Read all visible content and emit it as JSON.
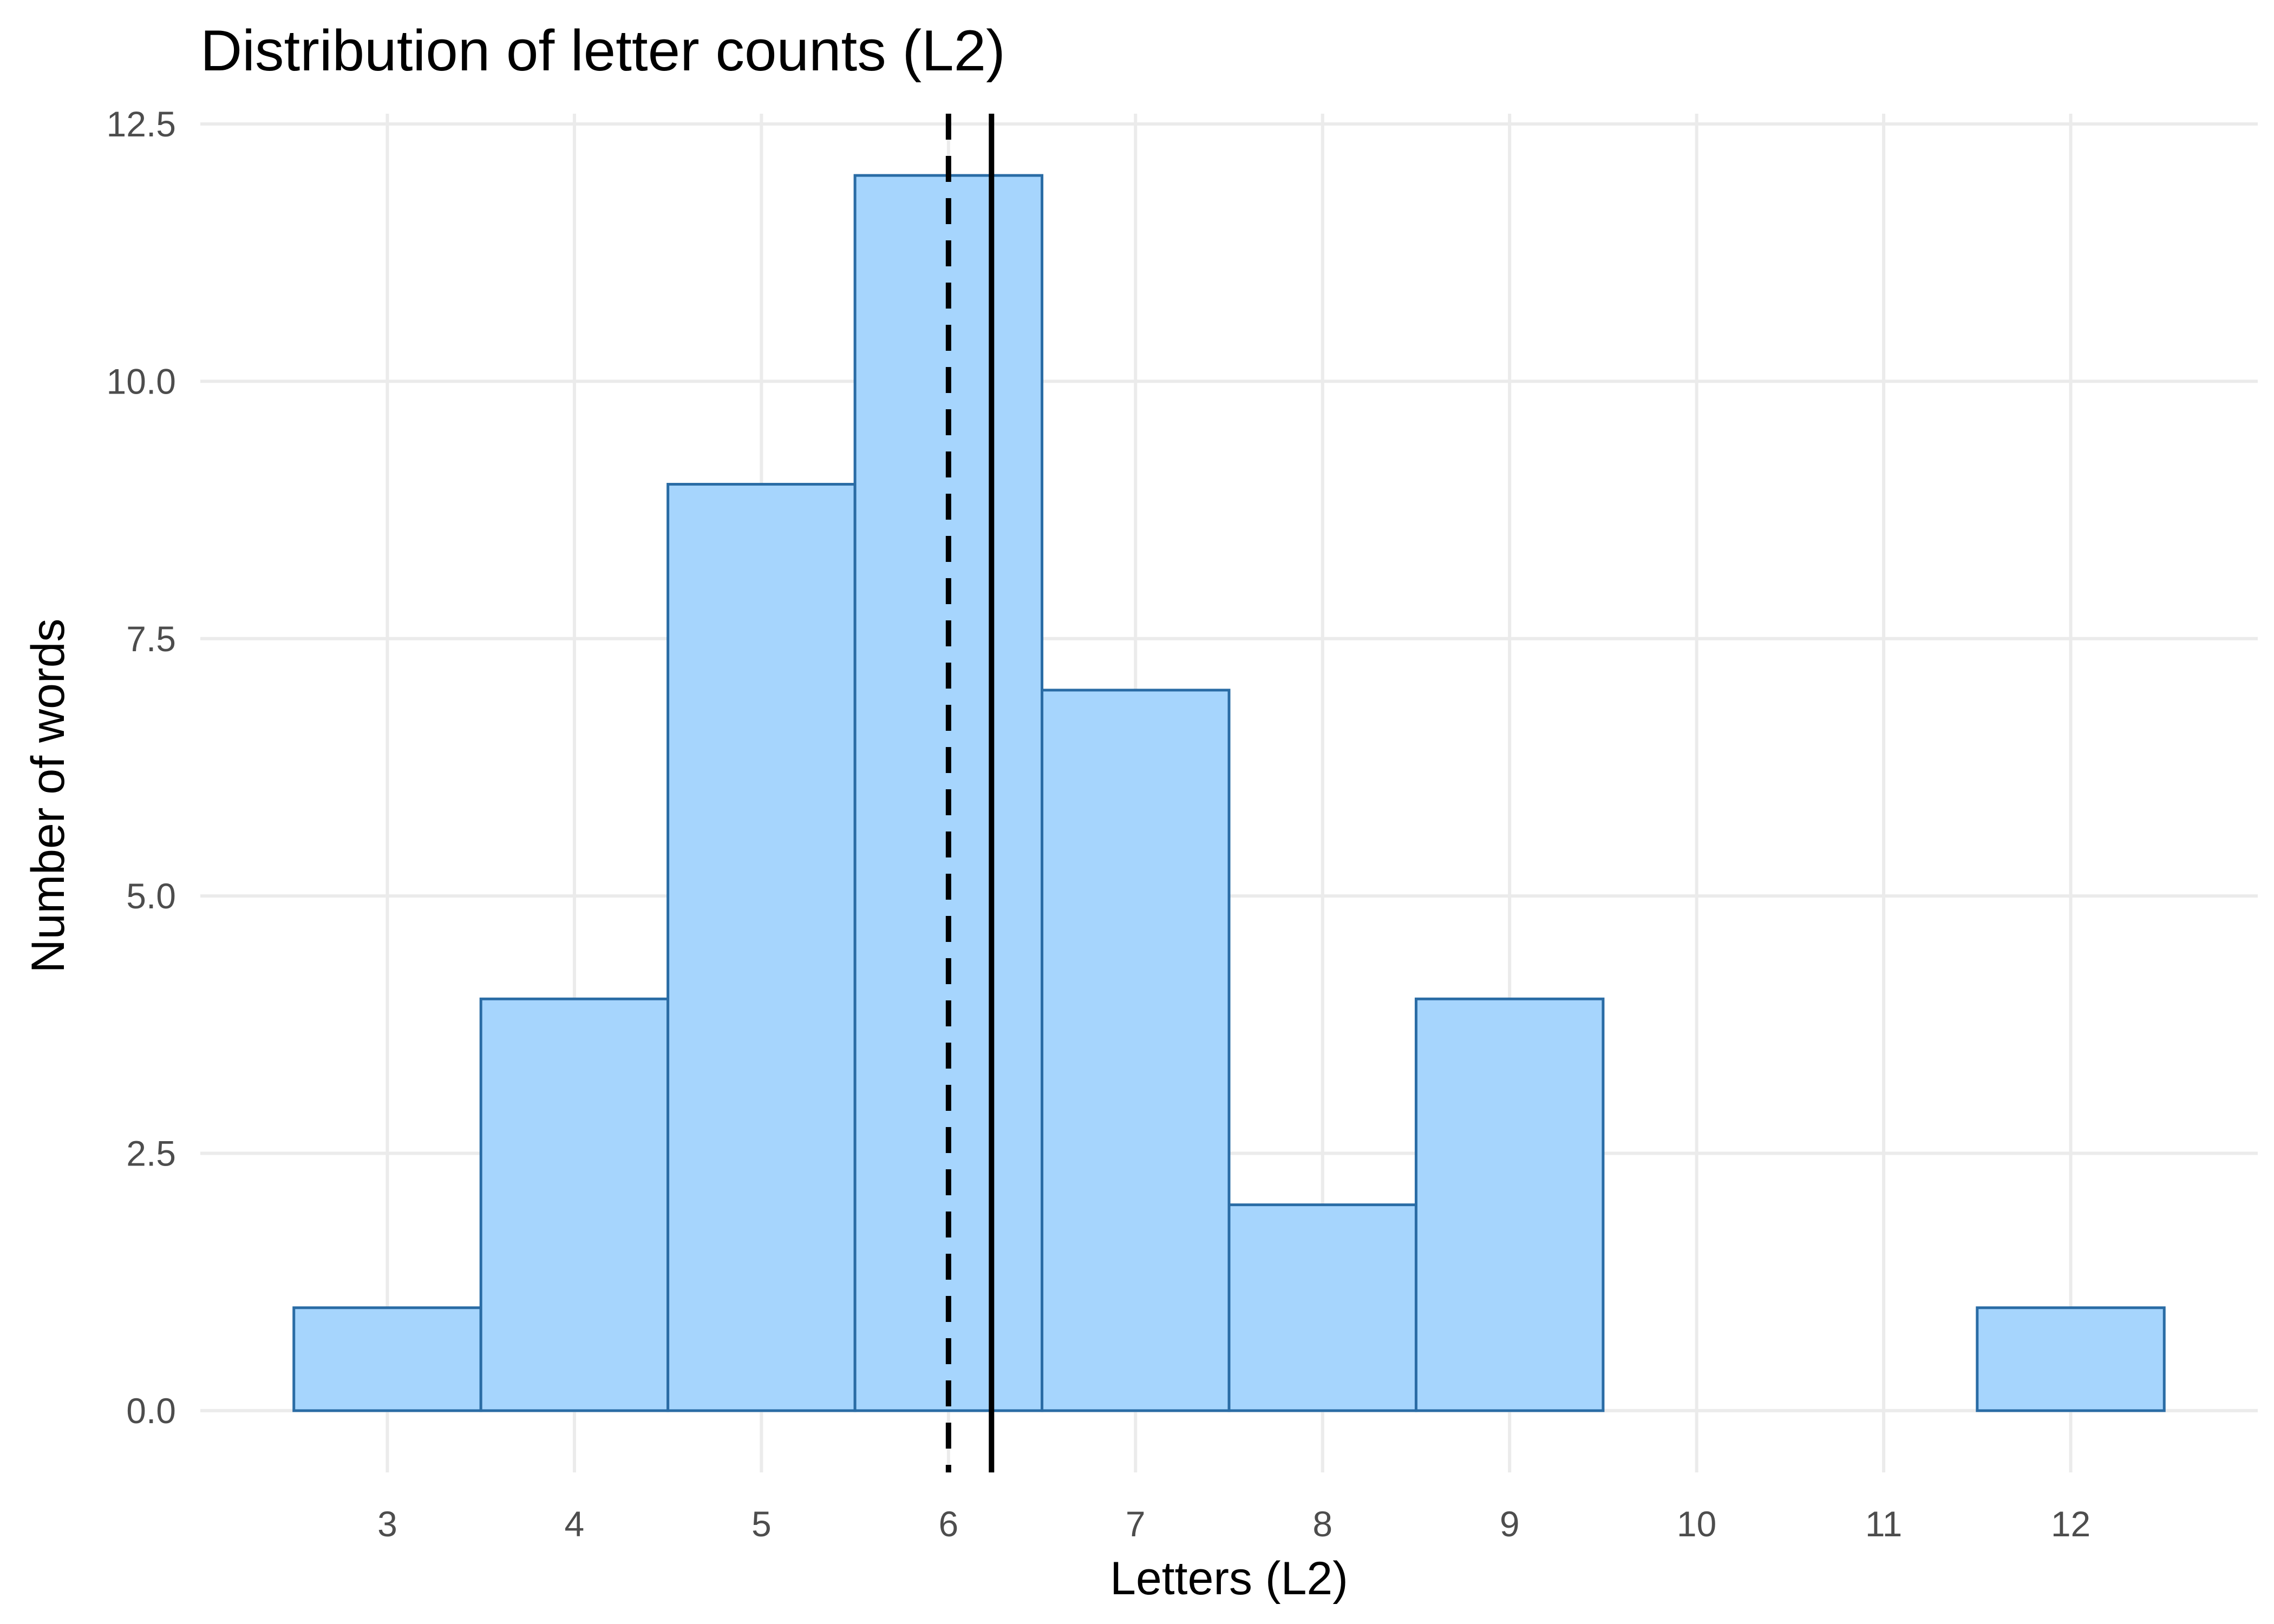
{
  "chart_data": {
    "type": "bar",
    "title": "Distribution of letter counts (L2)",
    "xlabel": "Letters (L2)",
    "ylabel": "Number of words",
    "x_ticks": [
      "3",
      "4",
      "5",
      "6",
      "7",
      "8",
      "9",
      "10",
      "11",
      "12"
    ],
    "y_ticks": [
      "0.0",
      "2.5",
      "5.0",
      "7.5",
      "10.0",
      "12.5"
    ],
    "xlim": [
      2,
      13
    ],
    "ylim": [
      -0.6,
      12.6
    ],
    "bins": [
      {
        "x": 3,
        "count": 1
      },
      {
        "x": 4,
        "count": 4
      },
      {
        "x": 5,
        "count": 9
      },
      {
        "x": 6,
        "count": 12
      },
      {
        "x": 7,
        "count": 7
      },
      {
        "x": 8,
        "count": 2
      },
      {
        "x": 9,
        "count": 4
      },
      {
        "x": 10,
        "count": 0
      },
      {
        "x": 11,
        "count": 0
      },
      {
        "x": 12,
        "count": 1
      }
    ],
    "bin_width": 1,
    "reference_lines": [
      {
        "x": 6.0,
        "style": "dashed"
      },
      {
        "x": 6.23,
        "style": "solid"
      }
    ],
    "grid": true,
    "legend": "none",
    "colors": {
      "bar_fill": "#a6d5fd",
      "bar_stroke": "#2a6ca5",
      "reference_line": "#000000",
      "grid": "#ebebeb"
    }
  }
}
